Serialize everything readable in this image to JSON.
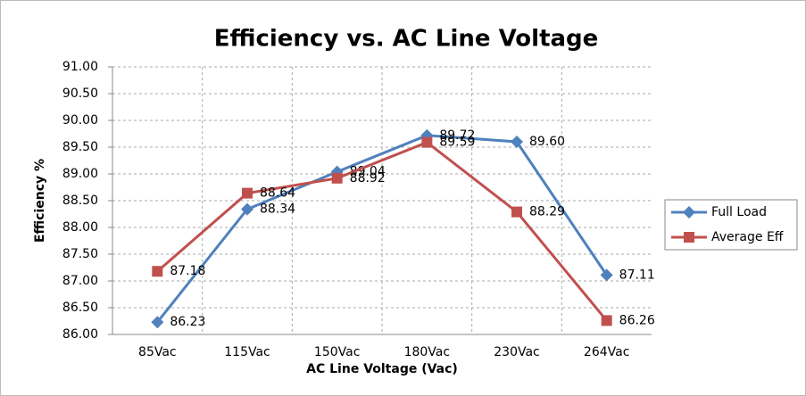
{
  "chart_data": {
    "type": "line",
    "title": "Efficiency vs. AC Line Voltage",
    "x_label": "AC Line Voltage (Vac)",
    "y_label": "Efficiency %",
    "categories": [
      "85Vac",
      "115Vac",
      "150Vac",
      "180Vac",
      "230Vac",
      "264Vac"
    ],
    "series": [
      {
        "name": "Full Load",
        "color": "#4f81bd",
        "marker": "diamond",
        "values": [
          86.23,
          88.34,
          89.04,
          89.72,
          89.6,
          87.11
        ],
        "value_labels": [
          "86.23",
          "88.34",
          "89.04",
          "89.72",
          "89.60",
          "87.11"
        ]
      },
      {
        "name": "Average Eff",
        "color": "#c0504d",
        "marker": "square",
        "values": [
          87.18,
          88.64,
          88.92,
          89.59,
          88.29,
          86.26
        ],
        "value_labels": [
          "87.18",
          "88.64",
          "88.92",
          "89.59",
          "88.29",
          "86.26"
        ]
      }
    ],
    "ylim": [
      86,
      91
    ],
    "yticks": [
      {
        "value": 86,
        "label": "86.00"
      },
      {
        "value": 86.5,
        "label": "86.50"
      },
      {
        "value": 87,
        "label": "87.00"
      },
      {
        "value": 87.5,
        "label": "87.50"
      },
      {
        "value": 88,
        "label": "88.00"
      },
      {
        "value": 88.5,
        "label": "88.50"
      },
      {
        "value": 89,
        "label": "89.00"
      },
      {
        "value": 89.5,
        "label": "89.50"
      },
      {
        "value": 90,
        "label": "90.00"
      },
      {
        "value": 90.5,
        "label": "90.50"
      },
      {
        "value": 91,
        "label": "91.00"
      }
    ],
    "grid": true,
    "legend": "right"
  }
}
